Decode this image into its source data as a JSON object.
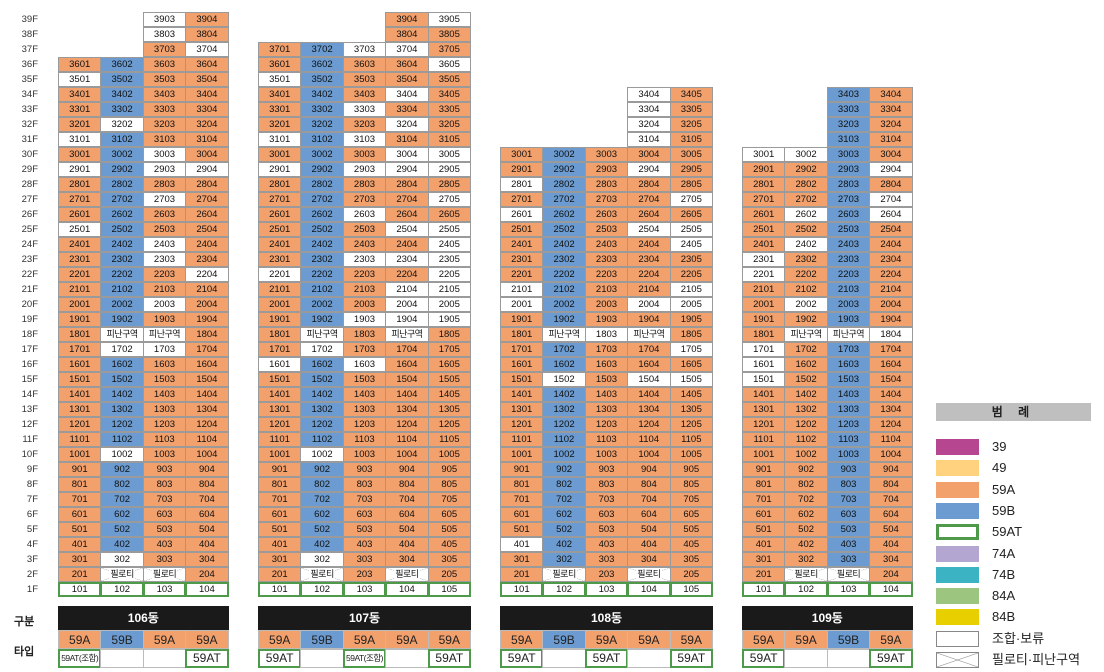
{
  "colors": {
    "59A": "#f2a06c",
    "59B": "#6b9bd0",
    "59AT_border": "#4e9a4a",
    "39": "#b5468f",
    "49": "#ffd27f",
    "74A": "#b3a6d0",
    "74B": "#3bb3c3",
    "84A": "#9cc57f",
    "84B": "#e8cf00",
    "none": "#ffffff"
  },
  "row_labels": {
    "section": "구분",
    "type": "타입"
  },
  "floors": [
    "39F",
    "38F",
    "37F",
    "36F",
    "35F",
    "34F",
    "33F",
    "32F",
    "31F",
    "30F",
    "29F",
    "28F",
    "27F",
    "26F",
    "25F",
    "24F",
    "23F",
    "22F",
    "21F",
    "20F",
    "19F",
    "18F",
    "17F",
    "16F",
    "15F",
    "14F",
    "13F",
    "12F",
    "11F",
    "10F",
    "9F",
    "8F",
    "7F",
    "6F",
    "5F",
    "4F",
    "3F",
    "2F",
    "1F"
  ],
  "buildings": [
    {
      "name": "106동",
      "types": [
        {
          "label": "59A",
          "style": "59A"
        },
        {
          "label": "59B",
          "style": "59B"
        },
        {
          "label": "59A",
          "style": "59A"
        },
        {
          "label": "59A",
          "style": "59A"
        }
      ],
      "type_row2": [
        {
          "label": "59AT(조합)",
          "style": "at-small"
        },
        {
          "label": "",
          "style": "none"
        },
        {
          "label": "",
          "style": "none"
        },
        {
          "label": "59AT",
          "style": "at"
        }
      ],
      "top_floor": [
        36,
        36,
        39,
        39
      ],
      "overrides": {
        "3903": "none",
        "3803": "none",
        "3704": "none",
        "3501": "none",
        "3202": "none",
        "3101": "none",
        "3003": "none",
        "2901": "none",
        "2903": "none",
        "2904": "none",
        "2703": "none",
        "2501": "none",
        "2403": "none",
        "2303": "none",
        "2204": "none",
        "2003": "none",
        "1702": "none",
        "1703": "none",
        "1002": "none",
        "302": "none",
        "1802": "evac",
        "1803": "evac",
        "202": "pilotis",
        "203": "pilotis",
        "101": "at",
        "102": "at",
        "103": "at",
        "104": "at"
      }
    },
    {
      "name": "107동",
      "types": [
        {
          "label": "59A",
          "style": "59A"
        },
        {
          "label": "59B",
          "style": "59B"
        },
        {
          "label": "59A",
          "style": "59A"
        },
        {
          "label": "59A",
          "style": "59A"
        },
        {
          "label": "59A",
          "style": "59A"
        }
      ],
      "type_row2": [
        {
          "label": "59AT",
          "style": "at"
        },
        {
          "label": "",
          "style": "none"
        },
        {
          "label": "59AT(조합)",
          "style": "at-small"
        },
        {
          "label": "",
          "style": "none"
        },
        {
          "label": "59AT",
          "style": "at"
        }
      ],
      "top_floor": [
        37,
        37,
        37,
        39,
        39
      ],
      "overrides": {
        "3905": "none",
        "3703": "none",
        "3704": "none",
        "3605": "none",
        "3501": "none",
        "3404": "none",
        "3303": "none",
        "3204": "none",
        "3101": "none",
        "3103": "none",
        "3004": "none",
        "3005": "none",
        "2901": "none",
        "2903": "none",
        "2904": "none",
        "2905": "none",
        "2705": "none",
        "2603": "none",
        "2504": "none",
        "2505": "none",
        "2405": "none",
        "2303": "none",
        "2304": "none",
        "2305": "none",
        "2201": "none",
        "2205": "none",
        "2104": "none",
        "2105": "none",
        "2004": "none",
        "2005": "none",
        "1903": "none",
        "1904": "none",
        "1905": "none",
        "1702": "none",
        "1601": "none",
        "1603": "none",
        "1002": "none",
        "302": "none",
        "1802": "evac",
        "1804": "evac",
        "202": "pilotis",
        "204": "pilotis",
        "101": "at",
        "102": "at",
        "103": "at",
        "104": "at",
        "105": "at"
      }
    },
    {
      "name": "108동",
      "types": [
        {
          "label": "59A",
          "style": "59A"
        },
        {
          "label": "59B",
          "style": "59B"
        },
        {
          "label": "59A",
          "style": "59A"
        },
        {
          "label": "59A",
          "style": "59A"
        },
        {
          "label": "59A",
          "style": "59A"
        }
      ],
      "type_row2": [
        {
          "label": "59AT",
          "style": "at"
        },
        {
          "label": "",
          "style": "none"
        },
        {
          "label": "59AT",
          "style": "at"
        },
        {
          "label": "",
          "style": "none"
        },
        {
          "label": "59AT",
          "style": "at"
        }
      ],
      "top_floor": [
        30,
        30,
        30,
        34,
        34
      ],
      "overrides": {
        "3404": "none",
        "3304": "none",
        "3204": "none",
        "3104": "none",
        "2904": "none",
        "2801": "none",
        "2705": "none",
        "2601": "none",
        "2504": "none",
        "2505": "none",
        "2405": "none",
        "2101": "none",
        "2105": "none",
        "2001": "none",
        "2004": "none",
        "2005": "none",
        "1803": "none",
        "1705": "none",
        "1502": "none",
        "1504": "none",
        "1505": "none",
        "401": "none",
        "1802": "evac",
        "1804": "evac",
        "202": "pilotis",
        "204": "pilotis",
        "101": "at",
        "102": "at",
        "103": "at",
        "104": "at",
        "105": "at"
      }
    },
    {
      "name": "109동",
      "types": [
        {
          "label": "59A",
          "style": "59A"
        },
        {
          "label": "59A",
          "style": "59A"
        },
        {
          "label": "59B",
          "style": "59B"
        },
        {
          "label": "59A",
          "style": "59A"
        }
      ],
      "type_row2": [
        {
          "label": "59AT",
          "style": "at"
        },
        {
          "label": "",
          "style": "none"
        },
        {
          "label": "",
          "style": "none"
        },
        {
          "label": "59AT",
          "style": "at"
        }
      ],
      "top_floor": [
        30,
        30,
        34,
        34
      ],
      "b_col": 2,
      "overrides": {
        "3001": "none",
        "3002": "none",
        "2904": "none",
        "2704": "none",
        "2602": "none",
        "2604": "none",
        "2402": "none",
        "2301": "none",
        "2201": "none",
        "2002": "none",
        "1804": "none",
        "1701": "none",
        "1601": "none",
        "1501": "none",
        "1802": "evac",
        "1803": "evac",
        "202": "pilotis",
        "203": "pilotis",
        "101": "at",
        "102": "at",
        "103": "at",
        "104": "at"
      }
    }
  ],
  "evac_label": "피난구역",
  "pilotis_label": "필로티",
  "legend": {
    "title": "범 례",
    "items": [
      {
        "label": "39",
        "color_key": "39",
        "kind": "fill"
      },
      {
        "label": "49",
        "color_key": "49",
        "kind": "fill"
      },
      {
        "label": "59A",
        "color_key": "59A",
        "kind": "fill"
      },
      {
        "label": "59B",
        "color_key": "59B",
        "kind": "fill"
      },
      {
        "label": "59AT",
        "color_key": "59AT_border",
        "kind": "outline"
      },
      {
        "label": "74A",
        "color_key": "74A",
        "kind": "fill"
      },
      {
        "label": "74B",
        "color_key": "74B",
        "kind": "fill"
      },
      {
        "label": "84A",
        "color_key": "84A",
        "kind": "fill"
      },
      {
        "label": "84B",
        "color_key": "84B",
        "kind": "fill"
      },
      {
        "label": "조합·보류",
        "color_key": "none",
        "kind": "empty"
      },
      {
        "label": "필로티·피난구역",
        "color_key": "none",
        "kind": "cross"
      }
    ]
  }
}
